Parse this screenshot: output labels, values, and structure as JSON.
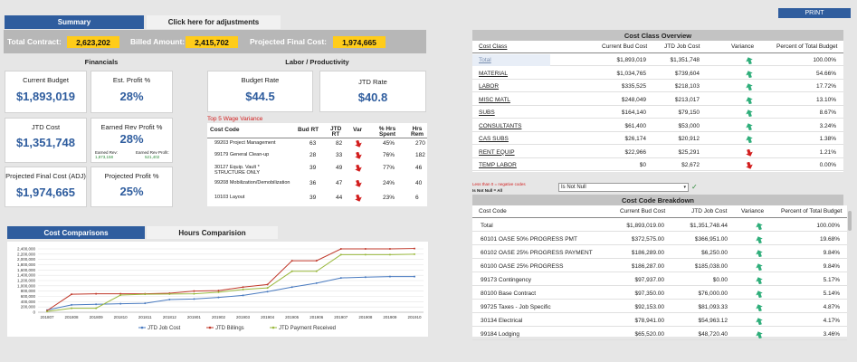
{
  "tabs_top": {
    "summary": "Summary",
    "adjustments": "Click here for adjustments"
  },
  "print": "PRINT",
  "totals": {
    "contract_label": "Total Contract:",
    "contract_value": "2,623,202",
    "billed_label": "Billed Amount:",
    "billed_value": "2,415,702",
    "projected_label": "Projected Final Cost:",
    "projected_value": "1,974,665"
  },
  "financials": {
    "title": "Financials",
    "current_budget": {
      "label": "Current Budget",
      "value": "$1,893,019"
    },
    "est_profit": {
      "label": "Est. Profit %",
      "value": "28%"
    },
    "jtd_cost": {
      "label": "JTD Cost",
      "value": "$1,351,748"
    },
    "earned_rev": {
      "label": "Earned Rev Profit %",
      "value": "28%",
      "rev_label": "Earned Rev:",
      "rev_value": "1,873,158",
      "profit_label": "Earned Rev Profit:",
      "profit_value": "521,402"
    },
    "projected_final": {
      "label": "Projected Final Cost (ADJ)",
      "value": "$1,974,665"
    },
    "projected_profit": {
      "label": "Projected Profit %",
      "value": "25%"
    }
  },
  "labor": {
    "title": "Labor / Productivity",
    "budget_rate": {
      "label": "Budget Rate",
      "value": "$44.5"
    },
    "jtd_rate": {
      "label": "JTD Rate",
      "value": "$40.8"
    },
    "wage_title": "Top 5 Wage Variance",
    "wage_headers": {
      "code": "Cost Code",
      "bud": "Bud RT",
      "jtd": "JTD RT",
      "var": "Var",
      "pct": "% Hrs Spent",
      "rem": "Hrs Rem"
    },
    "wage_rows": [
      {
        "code": "99203 Project Management",
        "bud": "63",
        "jtd": "82",
        "pct": "45%",
        "rem": "270"
      },
      {
        "code": "99179 General Clean-up",
        "bud": "28",
        "jtd": "33",
        "pct": "76%",
        "rem": "182"
      },
      {
        "code": "30127 Equip. Vault * STRUCTURE ONLY",
        "bud": "39",
        "jtd": "49",
        "pct": "77%",
        "rem": "46"
      },
      {
        "code": "99208 Mobilization/Demobilization",
        "bud": "36",
        "jtd": "47",
        "pct": "24%",
        "rem": "40"
      },
      {
        "code": "10103 Layout",
        "bud": "39",
        "jtd": "44",
        "pct": "23%",
        "rem": "6"
      }
    ]
  },
  "tabs_bottom": {
    "cost": "Cost Comparisons",
    "hours": "Hours Comparision"
  },
  "chart_data": {
    "type": "line",
    "categories": [
      "201807",
      "201808",
      "201809",
      "201810",
      "201811",
      "201812",
      "201901",
      "201902",
      "201903",
      "201904",
      "201905",
      "201906",
      "201907",
      "201908",
      "201909",
      "201910"
    ],
    "ylim": [
      0,
      2400000
    ],
    "yticks": [
      "0",
      "200,000",
      "400,000",
      "600,000",
      "800,000",
      "1,000,000",
      "1,200,000",
      "1,400,000",
      "1,600,000",
      "1,800,000",
      "2,000,000",
      "2,200,000",
      "2,400,000"
    ],
    "series": [
      {
        "name": "JTD Job Cost",
        "color": "#4a7bc0",
        "values": [
          80000,
          280000,
          300000,
          320000,
          340000,
          480000,
          500000,
          560000,
          640000,
          780000,
          950000,
          1100000,
          1300000,
          1330000,
          1350000,
          1352000
        ]
      },
      {
        "name": "JTD Billings",
        "color": "#c0392b",
        "values": [
          60000,
          680000,
          700000,
          700000,
          700000,
          720000,
          800000,
          820000,
          950000,
          1050000,
          1950000,
          1950000,
          2400000,
          2400000,
          2400000,
          2415000
        ]
      },
      {
        "name": "JTD Payment Received",
        "color": "#9ab93e",
        "values": [
          30000,
          150000,
          150000,
          650000,
          680000,
          690000,
          700000,
          760000,
          860000,
          920000,
          1550000,
          1550000,
          2180000,
          2180000,
          2180000,
          2200000
        ]
      }
    ]
  },
  "cost_class": {
    "title": "Cost Class Overview",
    "headers": {
      "cls": "Cost Class",
      "bud": "Current Bud Cost",
      "jtd": "JTD Job Cost",
      "var": "Variance",
      "pct": "Percent of Total Budget"
    },
    "rows": [
      {
        "cls": "Total",
        "bud": "$1,893,019",
        "jtd": "$1,351,748",
        "up": true,
        "pct": "100.00%"
      },
      {
        "cls": "MATERIAL",
        "bud": "$1,034,765",
        "jtd": "$739,604",
        "up": true,
        "pct": "54.66%"
      },
      {
        "cls": "LABOR",
        "bud": "$335,525",
        "jtd": "$218,103",
        "up": true,
        "pct": "17.72%"
      },
      {
        "cls": "MISC MATL",
        "bud": "$248,049",
        "jtd": "$213,017",
        "up": true,
        "pct": "13.10%"
      },
      {
        "cls": "SUBS",
        "bud": "$164,140",
        "jtd": "$79,150",
        "up": true,
        "pct": "8.67%"
      },
      {
        "cls": "CONSULTANTS",
        "bud": "$61,400",
        "jtd": "$53,000",
        "up": true,
        "pct": "3.24%"
      },
      {
        "cls": "CAS SUBS",
        "bud": "$26,174",
        "jtd": "$20,912",
        "up": true,
        "pct": "1.38%"
      },
      {
        "cls": "RENT EQUIP",
        "bud": "$22,966",
        "jtd": "$25,291",
        "up": false,
        "pct": "1.21%"
      },
      {
        "cls": "TEMP LABOR",
        "bud": "$0",
        "jtd": "$2,672",
        "up": false,
        "pct": "0.00%"
      }
    ]
  },
  "filter": {
    "note1": "Less than 0 = negative codes",
    "note2": "Is Not Null = All",
    "value": "Is Not Null"
  },
  "cost_code": {
    "title": "Cost Code Breakdown",
    "headers": {
      "code": "Cost Code",
      "bud": "Current Bud Cost",
      "jtd": "JTD Job Cost",
      "var": "Variance",
      "pct": "Percent of Total Budget"
    },
    "rows": [
      {
        "code": "Total",
        "bud": "$1,893,019.00",
        "jtd": "$1,351,748.44",
        "pct": "100.00%"
      },
      {
        "code": "60101 OASE 50% PROGRESS PMT",
        "bud": "$372,575.00",
        "jtd": "$366,951.00",
        "pct": "19.68%"
      },
      {
        "code": "60102 OASE 25% PROGRESS PAYMENT",
        "bud": "$186,289.00",
        "jtd": "$6,250.00",
        "pct": "9.84%"
      },
      {
        "code": "60100 OASE 25% PROGRESS",
        "bud": "$186,287.00",
        "jtd": "$185,038.00",
        "pct": "9.84%"
      },
      {
        "code": "99173 Contingency",
        "bud": "$97,937.00",
        "jtd": "$0.00",
        "pct": "5.17%"
      },
      {
        "code": "80100 Base Contract",
        "bud": "$97,350.00",
        "jtd": "$76,000.00",
        "pct": "5.14%"
      },
      {
        "code": "99725 Taxes - Job Specific",
        "bud": "$92,153.00",
        "jtd": "$81,093.33",
        "pct": "4.87%"
      },
      {
        "code": "30134 Electrical",
        "bud": "$78,941.00",
        "jtd": "$54,963.12",
        "pct": "4.17%"
      },
      {
        "code": "99184 Lodging",
        "bud": "$65,520.00",
        "jtd": "$48,720.40",
        "pct": "3.46%"
      }
    ]
  }
}
